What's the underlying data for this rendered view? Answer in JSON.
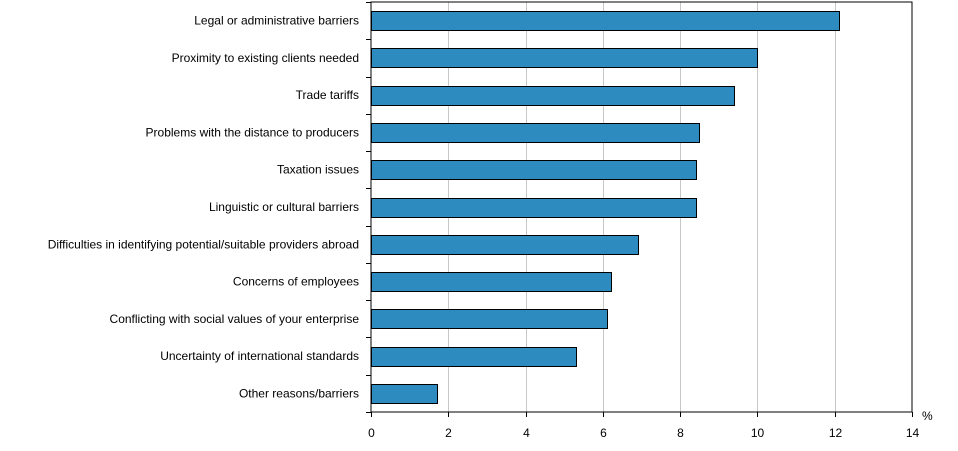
{
  "chart_data": {
    "type": "bar",
    "orientation": "horizontal",
    "categories": [
      "Legal or administrative barriers",
      "Proximity to existing clients needed",
      "Trade tariffs",
      "Problems with the distance to producers",
      "Taxation issues",
      "Linguistic or cultural barriers",
      "Difficulties in identifying potential/suitable providers abroad",
      "Concerns of employees",
      "Conflicting with social values of your enterprise",
      "Uncertainty of international standards",
      "Other reasons/barriers"
    ],
    "values": [
      12.1,
      10.0,
      9.4,
      8.5,
      8.4,
      8.4,
      6.9,
      6.2,
      6.1,
      5.3,
      1.7
    ],
    "xlim": [
      0,
      14
    ],
    "xticks": [
      "0",
      "2",
      "4",
      "6",
      "8",
      "10",
      "12",
      "14"
    ],
    "unit_label": "%",
    "grid": "vertical",
    "colors": {
      "bar": "#2e8bc0",
      "bar_outline": "#000000",
      "grid": "#c8c8c8",
      "axis": "#000000"
    }
  }
}
